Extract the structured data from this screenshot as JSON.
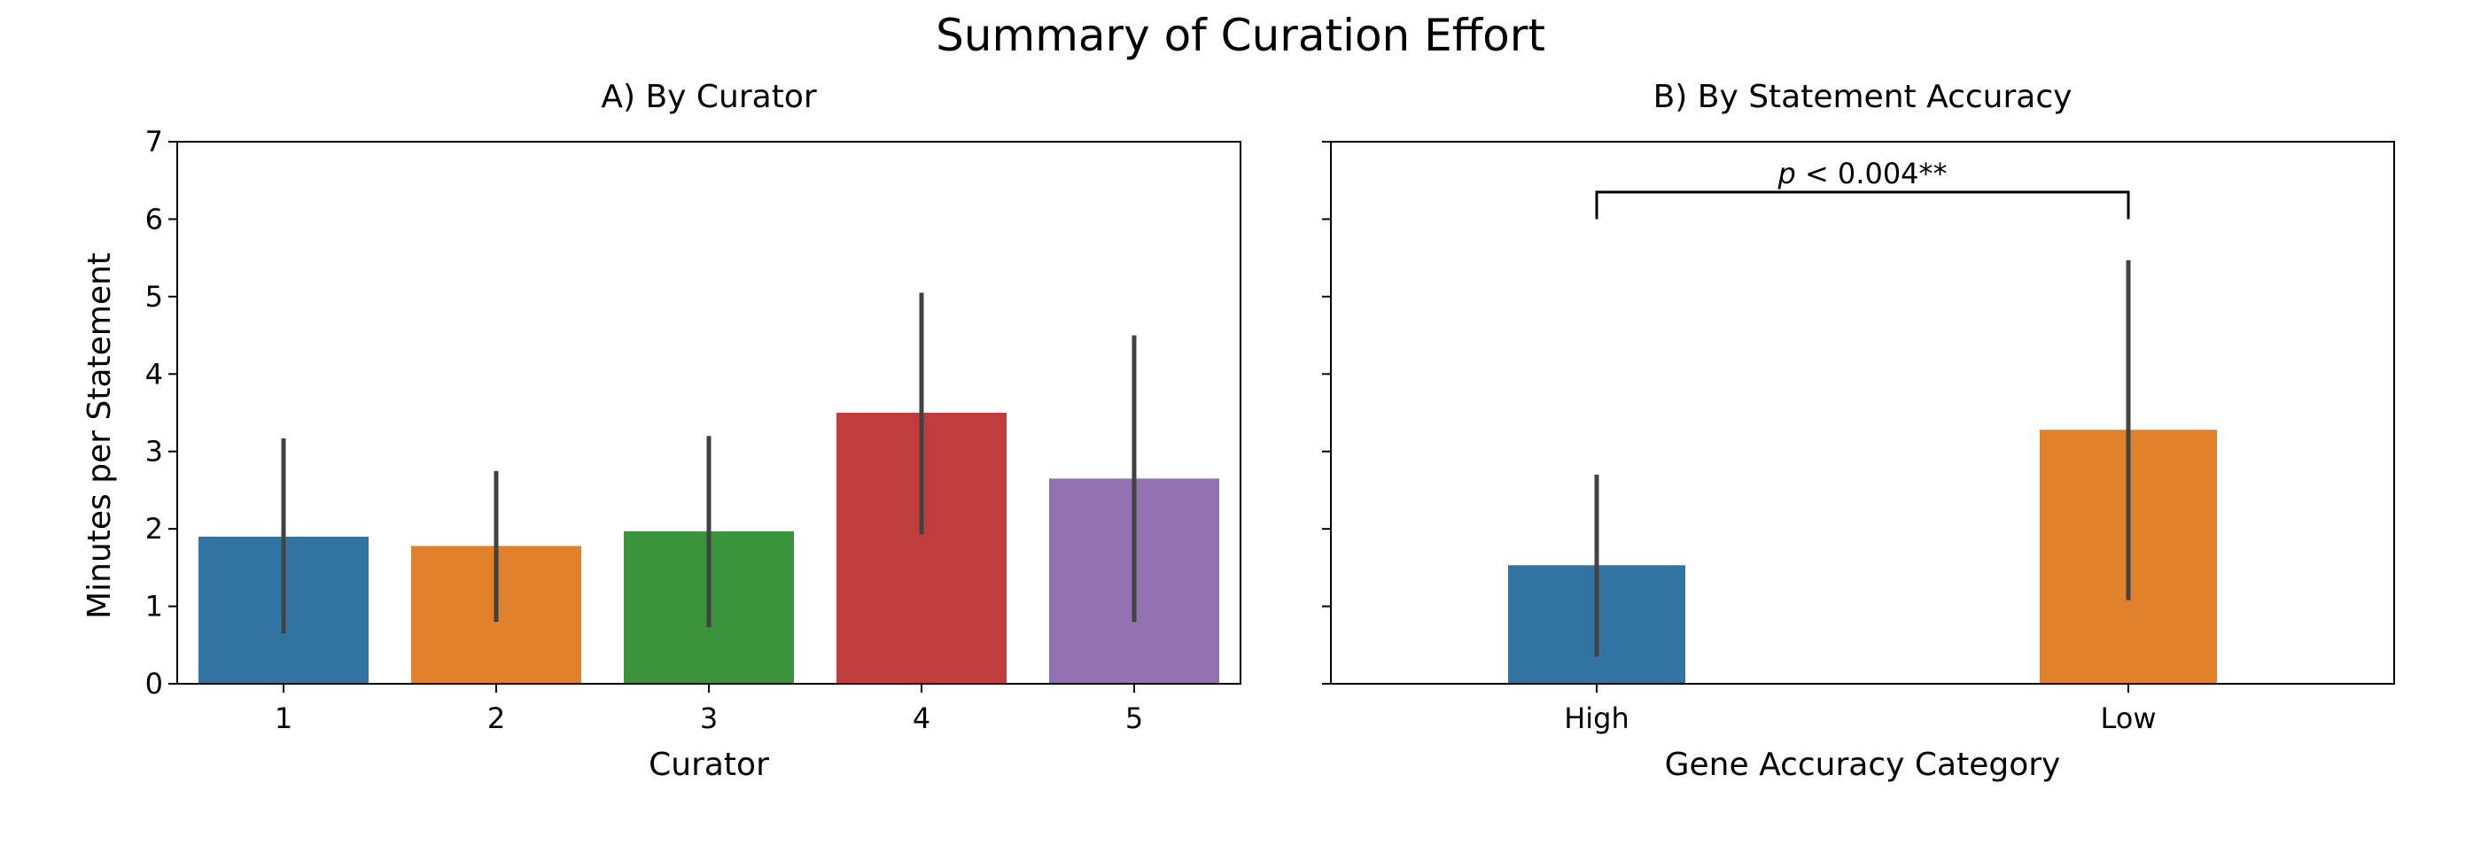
{
  "title": "Summary of Curation Effort",
  "shared": {
    "ylabel": "Minutes per Statement",
    "ylim": [
      0,
      7
    ],
    "yticks": [
      "0",
      "1",
      "2",
      "3",
      "4",
      "5",
      "6",
      "7"
    ]
  },
  "panels": [
    {
      "title": "A) By Curator",
      "xlabel": "Curator"
    },
    {
      "title": "B) By Statement Accuracy",
      "xlabel": "Gene Accuracy Category",
      "annotation": {
        "p_symbol": "p",
        "text": " < 0.004**"
      }
    }
  ],
  "colors": {
    "blue": "#3274a1",
    "orange": "#e1812c",
    "green": "#3a923a",
    "red": "#c03d3e",
    "purple": "#9372b2",
    "errorbar": "#424242",
    "axis": "#000000"
  },
  "chart_data": [
    {
      "type": "bar",
      "categories": [
        "1",
        "2",
        "3",
        "4",
        "5"
      ],
      "values": [
        1.9,
        1.78,
        1.97,
        3.5,
        2.65
      ],
      "error_low": [
        0.65,
        0.8,
        0.73,
        1.93,
        0.8
      ],
      "error_high": [
        3.17,
        2.75,
        3.2,
        5.05,
        4.5
      ],
      "colors": [
        "#3274a1",
        "#e1812c",
        "#3a923a",
        "#c03d3e",
        "#9372b2"
      ],
      "title": "A) By Curator",
      "xlabel": "Curator",
      "ylabel": "Minutes per Statement",
      "ylim": [
        0,
        7
      ],
      "yticks": [
        0,
        1,
        2,
        3,
        4,
        5,
        6,
        7
      ],
      "grid": false
    },
    {
      "type": "bar",
      "categories": [
        "High",
        "Low"
      ],
      "values": [
        1.53,
        3.28
      ],
      "error_low": [
        0.35,
        1.08
      ],
      "error_high": [
        2.7,
        5.47
      ],
      "colors": [
        "#3274a1",
        "#e1812c"
      ],
      "title": "B) By Statement Accuracy",
      "xlabel": "Gene Accuracy Category",
      "ylim": [
        0,
        7
      ],
      "yticks": [
        0,
        1,
        2,
        3,
        4,
        5,
        6,
        7
      ],
      "ytick_labels_shown": false,
      "grid": false,
      "significance": {
        "between": [
          "High",
          "Low"
        ],
        "bracket_y": 6.35,
        "bracket_drop": 0.35,
        "label": "p < 0.004**"
      }
    }
  ]
}
